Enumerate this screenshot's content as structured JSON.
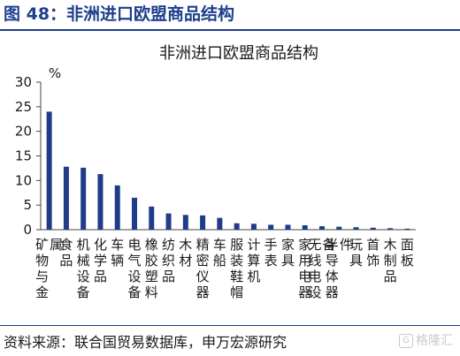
{
  "figure": {
    "title": "图 48：非洲进口欧盟商品结构",
    "source": "资料来源：联合国贸易数据库，申万宏源研究",
    "watermark": "格隆汇"
  },
  "chart_data": {
    "type": "bar",
    "title": "非洲进口欧盟商品结构",
    "ylabel": "%",
    "ylim": [
      0,
      30
    ],
    "yticks": [
      0,
      5,
      10,
      15,
      20,
      25,
      30
    ],
    "grid": false,
    "bar_color": "#1f3c88",
    "categories": [
      "矿物与金属",
      "食品",
      "机械设备",
      "化学品",
      "车辆",
      "电气设备",
      "橡胶塑料",
      "纺织品",
      "木材",
      "精密仪器",
      "车船",
      "服装鞋帽",
      "计算机",
      "手表",
      "家具",
      "家用电器",
      "无线电设备",
      "半导体器件",
      "玩具",
      "首饰",
      "木制品",
      "面板"
    ],
    "values": [
      24,
      12.8,
      12.6,
      11.3,
      9.0,
      6.5,
      4.7,
      3.3,
      3.0,
      2.9,
      2.4,
      1.3,
      1.2,
      1.0,
      1.0,
      0.9,
      0.7,
      0.6,
      0.5,
      0.4,
      0.3,
      0.2
    ]
  }
}
